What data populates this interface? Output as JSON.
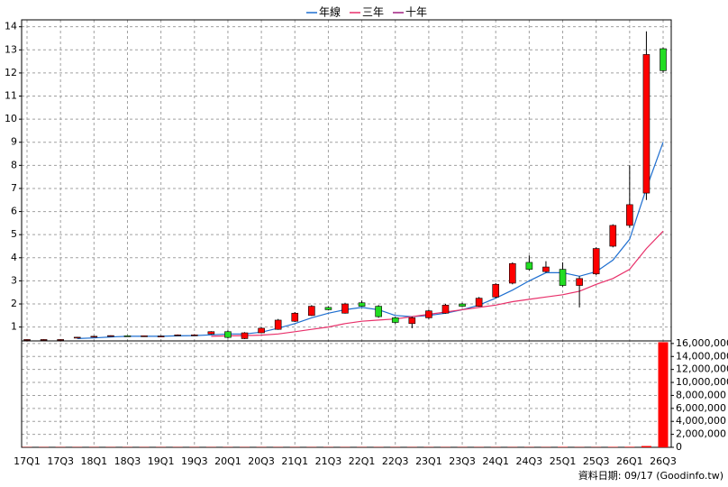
{
  "chart_data": [
    {
      "type": "candlestick",
      "categories": [
        "17Q1",
        null,
        "17Q3",
        null,
        "18Q1",
        null,
        "18Q3",
        null,
        "19Q1",
        null,
        "19Q3",
        null,
        "20Q1",
        null,
        "20Q3",
        null,
        "21Q1",
        null,
        "21Q3",
        null,
        "22Q1",
        null,
        "22Q3",
        null,
        "23Q1",
        null,
        "23Q3",
        null,
        "24Q1",
        null,
        "24Q3",
        null,
        "25Q1",
        null,
        "25Q3",
        null,
        "26Q1",
        null,
        "26Q3"
      ],
      "open": [
        0.45,
        0.45,
        0.45,
        0.55,
        0.58,
        0.62,
        0.62,
        0.6,
        0.6,
        0.65,
        0.65,
        0.7,
        0.8,
        0.5,
        0.75,
        0.9,
        1.25,
        1.5,
        1.85,
        1.6,
        2.05,
        1.9,
        1.4,
        1.15,
        1.4,
        1.6,
        2.0,
        1.9,
        2.3,
        2.9,
        3.8,
        3.4,
        3.5,
        2.8,
        3.3,
        4.5,
        5.4,
        6.8,
        13.05
      ],
      "high": [
        0.47,
        0.47,
        0.47,
        0.57,
        0.62,
        0.64,
        0.64,
        0.63,
        0.63,
        0.68,
        0.68,
        0.82,
        0.85,
        0.78,
        0.98,
        1.35,
        1.65,
        1.95,
        1.9,
        2.05,
        2.15,
        1.95,
        1.45,
        1.45,
        1.75,
        2.0,
        2.05,
        2.3,
        2.9,
        3.8,
        4.1,
        3.85,
        3.8,
        3.2,
        4.45,
        5.45,
        8.0,
        13.8,
        13.1
      ],
      "low": [
        0.43,
        0.43,
        0.43,
        0.53,
        0.55,
        0.6,
        0.6,
        0.58,
        0.58,
        0.63,
        0.63,
        0.68,
        0.5,
        0.48,
        0.73,
        0.88,
        1.22,
        1.48,
        1.72,
        1.58,
        1.88,
        1.4,
        1.15,
        0.95,
        1.35,
        1.58,
        1.88,
        1.88,
        2.25,
        2.85,
        3.45,
        3.35,
        2.75,
        1.85,
        3.25,
        4.45,
        5.3,
        6.5,
        12.0
      ],
      "close": [
        0.46,
        0.46,
        0.46,
        0.56,
        0.6,
        0.63,
        0.61,
        0.62,
        0.61,
        0.66,
        0.66,
        0.8,
        0.55,
        0.75,
        0.95,
        1.3,
        1.6,
        1.9,
        1.75,
        2.0,
        1.9,
        1.45,
        1.2,
        1.4,
        1.7,
        1.95,
        1.9,
        2.25,
        2.85,
        3.75,
        3.5,
        3.6,
        2.8,
        3.1,
        4.4,
        5.4,
        6.3,
        12.8,
        12.1
      ],
      "up_color": "#ff0000",
      "down_color": "#22dd22",
      "series": [
        {
          "name": "年線",
          "color": "#1f6fd0",
          "values": [
            null,
            null,
            null,
            0.5,
            0.53,
            0.57,
            0.6,
            0.6,
            0.6,
            0.62,
            0.63,
            0.66,
            0.7,
            0.7,
            0.78,
            0.95,
            1.15,
            1.4,
            1.6,
            1.75,
            1.85,
            1.75,
            1.5,
            1.45,
            1.5,
            1.6,
            1.75,
            1.95,
            2.25,
            2.6,
            3.0,
            3.35,
            3.35,
            3.2,
            3.4,
            3.9,
            4.8,
            7.0,
            9.0
          ]
        },
        {
          "name": "三年",
          "color": "#e8306a",
          "values": [
            null,
            null,
            null,
            null,
            null,
            null,
            null,
            null,
            null,
            null,
            null,
            0.6,
            0.62,
            0.63,
            0.65,
            0.7,
            0.8,
            0.9,
            1.0,
            1.15,
            1.25,
            1.3,
            1.35,
            1.45,
            1.55,
            1.65,
            1.75,
            1.85,
            1.95,
            2.1,
            2.2,
            2.3,
            2.4,
            2.55,
            2.85,
            3.1,
            3.5,
            4.4,
            5.15
          ]
        },
        {
          "name": "十年",
          "color": "#a02080",
          "values": [
            null,
            null,
            null,
            null,
            null,
            null,
            null,
            null,
            null,
            null,
            null,
            null,
            null,
            null,
            null,
            null,
            null,
            null,
            null,
            null,
            null,
            null,
            null,
            null,
            null,
            null,
            null,
            null,
            null,
            null,
            null,
            null,
            null,
            null,
            null,
            null,
            null,
            null,
            null
          ]
        }
      ],
      "ylim": [
        0.4,
        14.3
      ],
      "yticks": [
        1,
        2,
        3,
        4,
        5,
        6,
        7,
        8,
        9,
        10,
        11,
        12,
        13,
        14
      ],
      "grid": true
    },
    {
      "type": "bar",
      "color": "#ff0000",
      "values": [
        40000,
        40000,
        40000,
        40000,
        40000,
        40000,
        40000,
        40000,
        40000,
        40000,
        40000,
        40000,
        40000,
        40000,
        40000,
        40000,
        40000,
        40000,
        40000,
        40000,
        40000,
        40000,
        40000,
        40000,
        40000,
        40000,
        40000,
        40000,
        40000,
        40000,
        40000,
        40000,
        60000,
        40000,
        40000,
        60000,
        80000,
        200000,
        16200000
      ],
      "ylim": [
        0,
        16400000
      ],
      "yticks": [
        0,
        {
          "value": 2000000,
          "label": "2,000,000"
        },
        {
          "value": 4000000,
          "label": "4,000,000"
        },
        {
          "value": 6000000,
          "label": "6,000,000"
        },
        {
          "value": 8000000,
          "label": "8,000,000"
        },
        {
          "value": 10000000,
          "label": "10,000,000"
        },
        {
          "value": 12000000,
          "label": "12,000,000"
        },
        {
          "value": 14000000,
          "label": "14,000,000"
        },
        {
          "value": 16000000,
          "label": "16,000,000"
        }
      ],
      "grid": true,
      "footnote": "資料日期: 09/17 (Goodinfo.tw)"
    }
  ]
}
